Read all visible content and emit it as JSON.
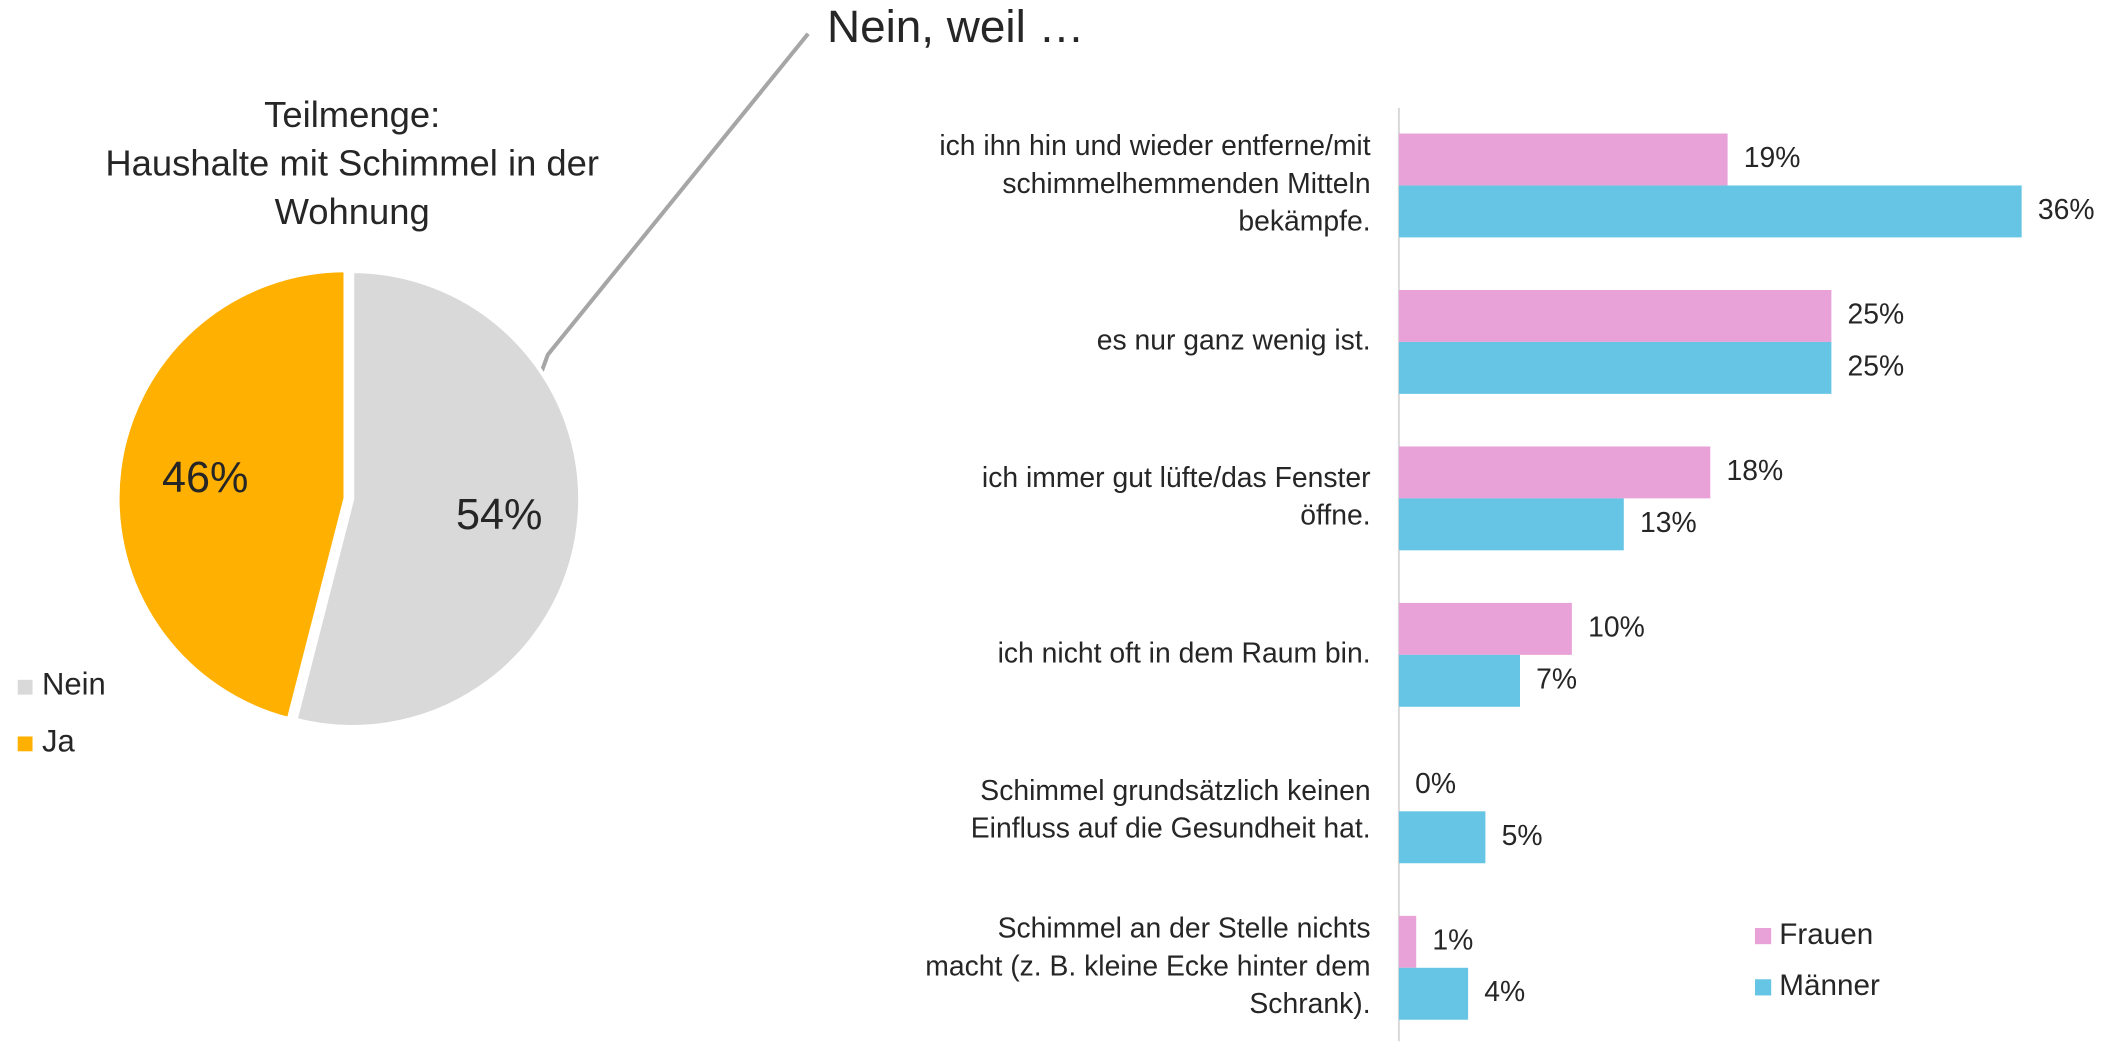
{
  "chart_data": [
    {
      "type": "pie",
      "title": [
        "Teilmenge:",
        "Haushalte mit Schimmel in der",
        "Wohnung"
      ],
      "categories": [
        "Nein",
        "Ja"
      ],
      "values": [
        54,
        46
      ],
      "value_labels": [
        "54%",
        "46%"
      ],
      "colors": [
        "#d9d9d9",
        "#ffb000"
      ],
      "legend": "bottom-left"
    },
    {
      "type": "hbar",
      "title": "Nein, weil …",
      "categories": [
        [
          "ich ihn hin und wieder entferne/mit",
          "schimmelhemmenden Mitteln",
          "bekämpfe."
        ],
        [
          "es nur ganz wenig ist."
        ],
        [
          "ich immer gut lüfte/das Fenster",
          "öffne."
        ],
        [
          "ich nicht oft in dem Raum bin."
        ],
        [
          "Schimmel grundsätzlich keinen",
          "Einfluss auf die Gesundheit hat."
        ],
        [
          "Schimmel an der Stelle nichts",
          "macht (z. B. kleine Ecke hinter dem",
          "Schrank)."
        ]
      ],
      "series": [
        {
          "name": "Frauen",
          "color": "#e8a2d8",
          "values": [
            19,
            25,
            18,
            10,
            0,
            1
          ],
          "value_labels": [
            "19%",
            "25%",
            "18%",
            "10%",
            "0%",
            "1%"
          ]
        },
        {
          "name": "Männer",
          "color": "#66c5e4",
          "values": [
            36,
            25,
            13,
            7,
            5,
            4
          ],
          "value_labels": [
            "36%",
            "25%",
            "13%",
            "7%",
            "5%",
            "4%"
          ]
        }
      ],
      "xlim": [
        0,
        40
      ],
      "legend": "bottom-right"
    }
  ]
}
